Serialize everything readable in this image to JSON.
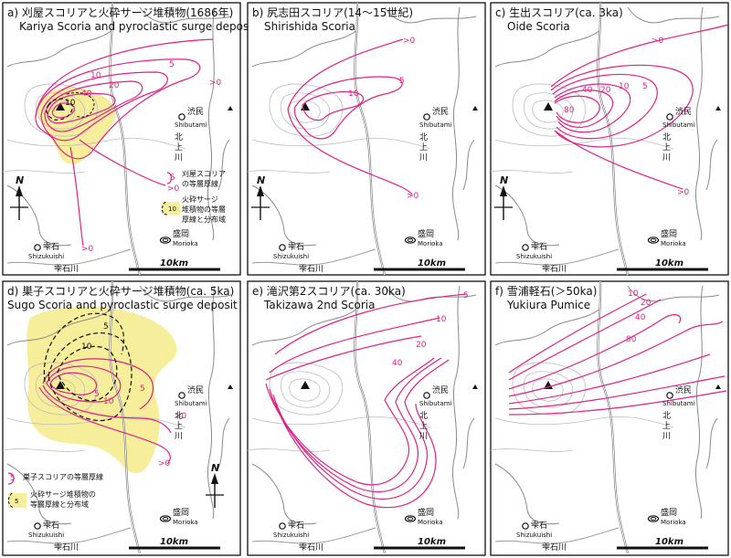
{
  "colors": {
    "isopach": "#e0218a",
    "surge": "#f6ee9a",
    "road": "#777777",
    "coast": "#8a8a8a",
    "frame": "#111111"
  },
  "panels": [
    {
      "id": "a",
      "title_ja": "a) 刈屋スコリアと火砕サージ堆積物(1686年)",
      "title_en": "Kariya Scoria and pyroclastic surge deposit",
      "isopachs": [
        "10",
        "40",
        "20",
        "10",
        "5",
        ">0",
        ">0",
        ">0"
      ],
      "legend": {
        "isopach_value": "5",
        "isopach_text": [
          "刈屋スコリア",
          "の等層厚線"
        ],
        "surge_value": "10",
        "surge_text": [
          "火砕サージ",
          "堆積物の等層",
          "厚線と分布域"
        ]
      }
    },
    {
      "id": "b",
      "title_ja": "b) 尻志田スコリア(14〜15世紀)",
      "title_en": "Shirishida Scoria",
      "isopachs": [
        ">0",
        "5",
        "10",
        ">0"
      ]
    },
    {
      "id": "c",
      "title_ja": "c) 生出スコリア(ca. 3ka)",
      "title_en": "Oide Scoria",
      "isopachs": [
        ">0",
        "5",
        "10",
        "20",
        "40",
        "80",
        ">0"
      ]
    },
    {
      "id": "d",
      "title_ja": "d) 巣子スコリアと火砕サージ堆積物(ca. 5ka)",
      "title_en": "Sugo Scoria and pyroclastic surge deposit",
      "isopachs": [
        "5",
        "10",
        "5",
        "10",
        "5",
        ">0",
        ">0"
      ],
      "legend": {
        "isopach_value": "5",
        "isopach_text": [
          "巣子スコリアの等層厚線"
        ],
        "surge_value": "5",
        "surge_text": [
          "火砕サージ堆積物の",
          "等層厚線と分布域"
        ]
      }
    },
    {
      "id": "e",
      "title_ja": "e) 滝沢第2スコリア(ca. 30ka)",
      "title_en": "Takizawa 2nd Scoria",
      "isopachs": [
        "5",
        "10",
        "20",
        "40"
      ]
    },
    {
      "id": "f",
      "title_ja": "f) 雪浦軽石(＞50ka)",
      "title_en": "Yukiura Pumice",
      "isopachs": [
        "10",
        "20",
        "40",
        "80"
      ]
    }
  ],
  "places": {
    "shibutami_ja": "渋民",
    "shibutami_en": "Shibutami",
    "shizukuishi_ja": "雫石",
    "shizukuishi_en": "Shizukuishi",
    "morioka_ja": "盛岡",
    "morioka_en": "Morioka",
    "kitakami_river": "北上川",
    "shizukuishi_river": "雫石川"
  },
  "north_label": "N",
  "scale_label": "10km"
}
